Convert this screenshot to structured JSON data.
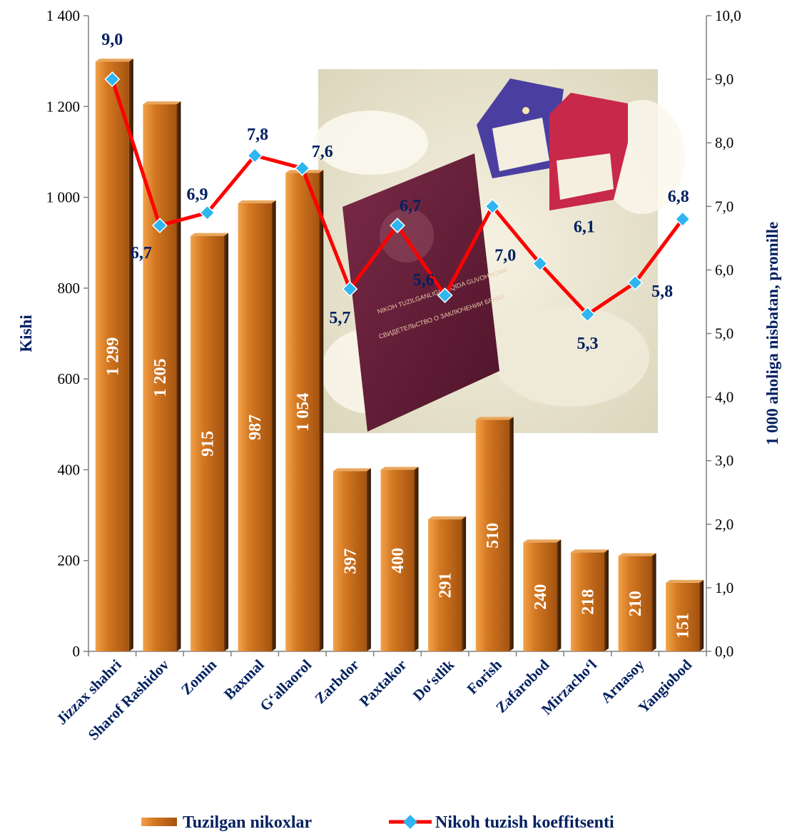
{
  "chart_data": {
    "type": "bar",
    "combo": "bar + line (secondary axis)",
    "categories": [
      "Jizzax shahri",
      "Sharof Rashidov",
      "Zomin",
      "Baxmal",
      "G‘allaorol",
      "Zarbdor",
      "Paxtakor",
      "Do‘stlik",
      "Forish",
      "Zafarobod",
      "Mirzacho‘l",
      "Arnasoy",
      "Yangiobod"
    ],
    "series": [
      {
        "name": "Tuzilgan nikoxlar",
        "type": "bar",
        "axis": "left",
        "color": "#C86A1E",
        "values": [
          1299,
          1205,
          915,
          987,
          1054,
          397,
          400,
          291,
          510,
          240,
          218,
          210,
          151
        ],
        "labels": [
          "1 299",
          "1 205",
          "915",
          "987",
          "1 054",
          "397",
          "400",
          "291",
          "510",
          "240",
          "218",
          "210",
          "151"
        ]
      },
      {
        "name": "Nikoh tuzish koeffitsenti",
        "type": "line",
        "axis": "right",
        "color": "#FF0000",
        "marker_color": "#2FB6F0",
        "values": [
          9.0,
          6.7,
          6.9,
          7.8,
          7.6,
          5.7,
          6.7,
          5.6,
          7.0,
          6.1,
          5.3,
          5.8,
          6.8
        ],
        "labels": [
          "9,0",
          "6,7",
          "6,9",
          "7,8",
          "7,6",
          "5,7",
          "6,7",
          "5,6",
          "7,0",
          "6,1",
          "5,3",
          "5,8",
          "6,8"
        ]
      }
    ],
    "ylabel": "Kishi",
    "y2label": "1 000 aholiga nisbatan, promille",
    "ylim": [
      0,
      1400
    ],
    "y2lim": [
      0,
      10
    ],
    "yticks": [
      "0",
      "200",
      "400",
      "600",
      "800",
      "1 000",
      "1 200",
      "1 400"
    ],
    "y2ticks": [
      "0,0",
      "1,0",
      "2,0",
      "3,0",
      "4,0",
      "5,0",
      "6,0",
      "7,0",
      "8,0",
      "9,0",
      "10,0"
    ],
    "grid": false,
    "legend_position": "bottom"
  },
  "photo": {
    "description_icon": "photo-icon",
    "passport_text_1": "NIKOH TUZILGANLIGI HAQIDA GUVOHNOMA",
    "passport_text_2": "СВИДЕТЕЛЬСТВО О ЗАКЛЮЧЕНИИ БРАКА"
  }
}
